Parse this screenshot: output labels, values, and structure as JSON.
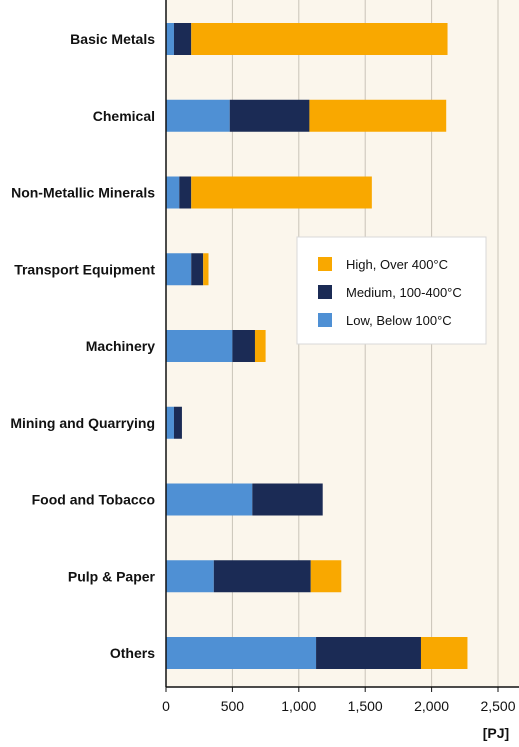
{
  "chart_data": {
    "type": "bar",
    "orientation": "horizontal",
    "stacked": true,
    "title": "",
    "xlabel": "[PJ]",
    "ylabel": "",
    "xlim": [
      0,
      2500
    ],
    "x_ticks": [
      0,
      500,
      1000,
      1500,
      2000,
      2500
    ],
    "x_tick_labels": [
      "0",
      "500",
      "1,000",
      "1,500",
      "2,000",
      "2,500"
    ],
    "grid": "vertical",
    "legend_position": "right-middle",
    "categories": [
      "Basic Metals",
      "Chemical",
      "Non-Metallic Minerals",
      "Transport Equipment",
      "Machinery",
      "Mining and Quarrying",
      "Food and Tobacco",
      "Pulp & Paper",
      "Others"
    ],
    "series": [
      {
        "name": "Low, Below 100°C",
        "color": "#4f90d4",
        "values": [
          60,
          480,
          100,
          190,
          500,
          60,
          650,
          360,
          1130
        ]
      },
      {
        "name": "Medium, 100-400°C",
        "color": "#1b2b55",
        "values": [
          130,
          600,
          90,
          90,
          170,
          60,
          530,
          730,
          790
        ]
      },
      {
        "name": "High, Over 400°C",
        "color": "#f9a800",
        "values": [
          1930,
          1030,
          1360,
          40,
          80,
          0,
          0,
          230,
          350
        ]
      }
    ],
    "legend_order": [
      "High, Over 400°C",
      "Medium, 100-400°C",
      "Low, Below 100°C"
    ],
    "plot_background": "#fbf6ec",
    "grid_color": "#c9c4b8",
    "axis_color": "#111111"
  }
}
